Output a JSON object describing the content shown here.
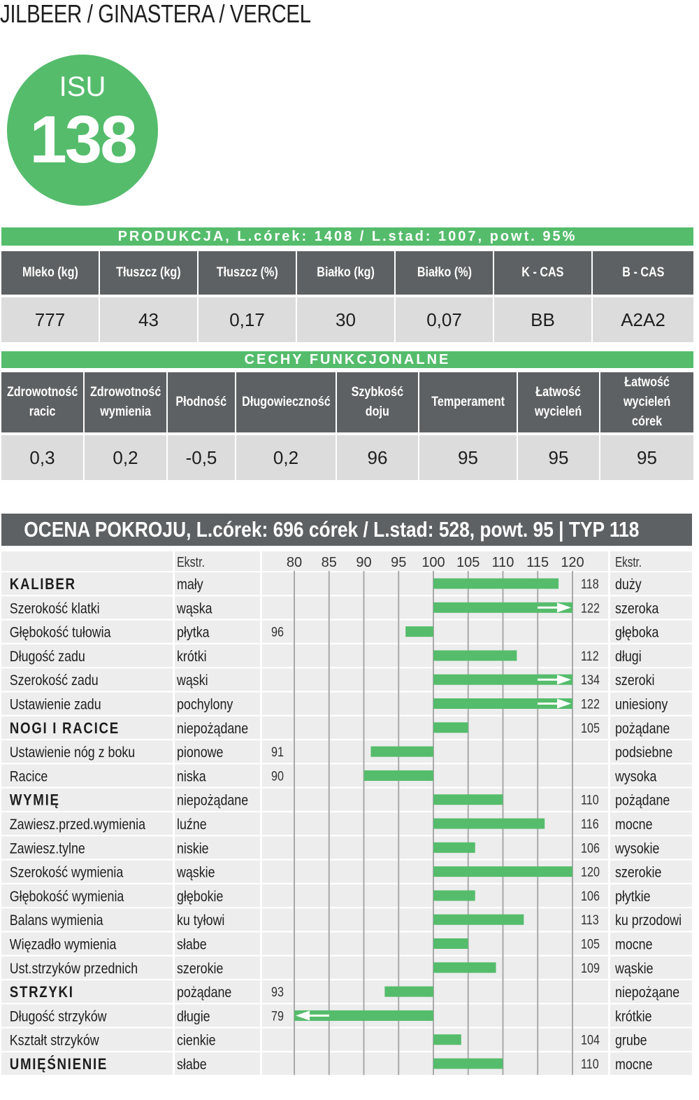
{
  "header": {
    "title": "JILBEER / GINASTERA / VERCEL"
  },
  "isu": {
    "label": "ISU",
    "value": "138",
    "color": "#55bc6c"
  },
  "production": {
    "title": "PRODUKCJA, L.córek: 1408 / L.stad: 1007, powt. 95%",
    "columns": [
      "Mleko (kg)",
      "Tłuszcz (kg)",
      "Tłuszcz (%)",
      "Białko (kg)",
      "Białko (%)",
      "K - CAS",
      "B - CAS"
    ],
    "values": [
      "777",
      "43",
      "0,17",
      "30",
      "0,07",
      "BB",
      "A2A2"
    ]
  },
  "functional": {
    "title": "CECHY FUNKCJONALNE",
    "columns": [
      [
        "Zdrowotność",
        "racic"
      ],
      [
        "Zdrowotność",
        "wymienia"
      ],
      [
        "Płodność"
      ],
      [
        "Długowieczność"
      ],
      [
        "Szybkość",
        "doju"
      ],
      [
        "Temperament"
      ],
      [
        "Łatwość",
        "wycieleń"
      ],
      [
        "Łatwość",
        "wycieleń",
        "córek"
      ]
    ],
    "values": [
      "0,3",
      "0,2",
      "-0,5",
      "0,2",
      "96",
      "95",
      "95",
      "95"
    ]
  },
  "conformation": {
    "title": "OCENA POKROJU, L.córek: 696 córek / L.stad: 528, powt. 95  |  TYP 118"
  },
  "colors": {
    "accent": "#55bc6c",
    "header_gray": "#5e6163",
    "cell_gray": "#dcdcdc",
    "row_alt": "#ededed"
  },
  "chart_data": {
    "type": "bar",
    "orientation": "horizontal",
    "baseline": 100,
    "xlim": [
      80,
      120
    ],
    "xticks": [
      80,
      85,
      90,
      95,
      100,
      105,
      110,
      115,
      120
    ],
    "left_header": "Ekstr.",
    "right_header": "Ekstr.",
    "grid": true,
    "rows": [
      {
        "trait": "KALIBER",
        "bold": true,
        "left": "mały",
        "right": "duży",
        "value": 118
      },
      {
        "trait": "Szerokość klatki",
        "bold": false,
        "left": "wąska",
        "right": "szeroka",
        "value": 122
      },
      {
        "trait": "Głębokość tułowia",
        "bold": false,
        "left": "płytka",
        "right": "głęboka",
        "value": 96
      },
      {
        "trait": "Długość zadu",
        "bold": false,
        "left": "krótki",
        "right": "długi",
        "value": 112
      },
      {
        "trait": "Szerokość zadu",
        "bold": false,
        "left": "wąski",
        "right": "szeroki",
        "value": 134
      },
      {
        "trait": "Ustawienie zadu",
        "bold": false,
        "left": "pochylony",
        "right": "uniesiony",
        "value": 122
      },
      {
        "trait": "NOGI I RACICE",
        "bold": true,
        "left": "niepożądane",
        "right": "pożądane",
        "value": 105
      },
      {
        "trait": "Ustawienie nóg z boku",
        "bold": false,
        "left": "pionowe",
        "right": "podsiebne",
        "value": 91
      },
      {
        "trait": "Racice",
        "bold": false,
        "left": "niska",
        "right": "wysoka",
        "value": 90
      },
      {
        "trait": "WYMIĘ",
        "bold": true,
        "left": "niepożądane",
        "right": "pożądane",
        "value": 110
      },
      {
        "trait": "Zawiesz.przed.wymienia",
        "bold": false,
        "left": "luźne",
        "right": "mocne",
        "value": 116
      },
      {
        "trait": "Zawiesz.tylne",
        "bold": false,
        "left": "niskie",
        "right": "wysokie",
        "value": 106
      },
      {
        "trait": "Szerokość wymienia",
        "bold": false,
        "left": "wąskie",
        "right": "szerokie",
        "value": 120
      },
      {
        "trait": "Głębokość wymienia",
        "bold": false,
        "left": "głębokie",
        "right": "płytkie",
        "value": 106
      },
      {
        "trait": "Balans wymienia",
        "bold": false,
        "left": "ku tyłowi",
        "right": "ku przodowi",
        "value": 113
      },
      {
        "trait": "Więzadło wymienia",
        "bold": false,
        "left": "słabe",
        "right": "mocne",
        "value": 105
      },
      {
        "trait": "Ust.strzyków przednich",
        "bold": false,
        "left": "szerokie",
        "right": "wąskie",
        "value": 109
      },
      {
        "trait": "STRZYKI",
        "bold": true,
        "left": "pożądane",
        "right": "niepożąane",
        "value": 93
      },
      {
        "trait": "Długość strzyków",
        "bold": false,
        "left": "długie",
        "right": "krótkie",
        "value": 79
      },
      {
        "trait": "Kształt strzyków",
        "bold": false,
        "left": "cienkie",
        "right": "grube",
        "value": 104
      },
      {
        "trait": "UMIĘŚNIENIE",
        "bold": true,
        "left": "słabe",
        "right": "mocne",
        "value": 110
      }
    ]
  }
}
